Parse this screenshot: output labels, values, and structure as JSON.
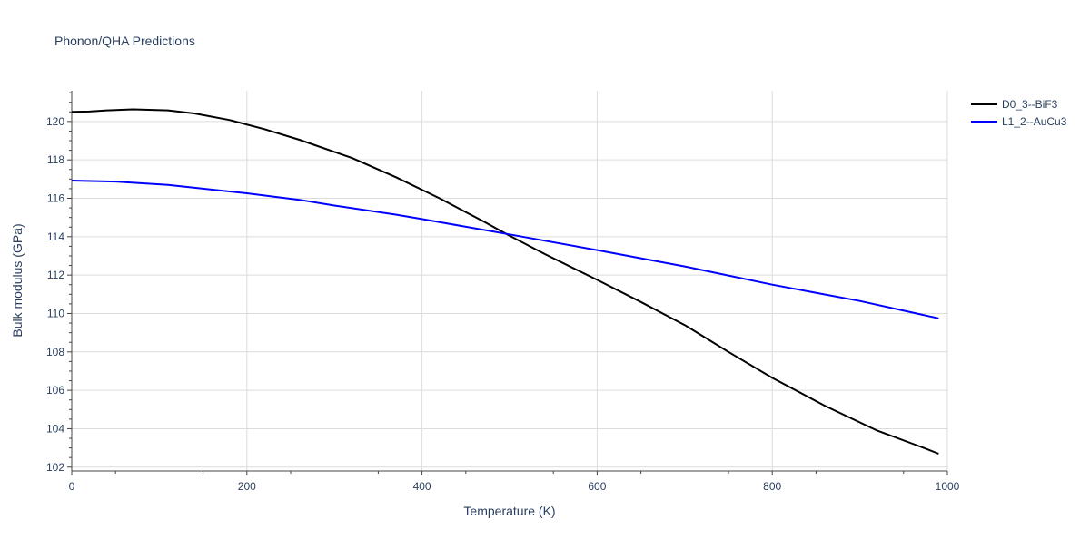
{
  "chart_data": {
    "type": "line",
    "title": "Phonon/QHA Predictions",
    "xlabel": "Temperature (K)",
    "ylabel": "Bulk modulus (GPa)",
    "xlim": [
      0,
      1000
    ],
    "ylim": [
      101.8,
      121.6
    ],
    "x_ticks": [
      0,
      200,
      400,
      600,
      800,
      1000
    ],
    "y_ticks": [
      102,
      104,
      106,
      108,
      110,
      112,
      114,
      116,
      118,
      120
    ],
    "grid": true,
    "legend_position": "top-right",
    "series": [
      {
        "name": "D0_3--BiF3",
        "color": "#000000",
        "x": [
          0,
          20,
          40,
          70,
          110,
          140,
          180,
          220,
          260,
          320,
          370,
          420,
          470,
          500,
          540,
          600,
          650,
          700,
          750,
          800,
          860,
          920,
          970,
          990
        ],
        "y": [
          120.5,
          120.52,
          120.58,
          120.63,
          120.58,
          120.42,
          120.08,
          119.6,
          119.05,
          118.1,
          117.1,
          116.0,
          114.8,
          114.05,
          113.1,
          111.75,
          110.6,
          109.4,
          108.0,
          106.65,
          105.2,
          103.9,
          103.05,
          102.7
        ]
      },
      {
        "name": "L1_2--AuCu3",
        "color": "#0000ff",
        "x": [
          0,
          50,
          110,
          200,
          260,
          300,
          370,
          400,
          500,
          600,
          700,
          800,
          900,
          990
        ],
        "y": [
          116.92,
          116.87,
          116.7,
          116.26,
          115.92,
          115.62,
          115.15,
          114.92,
          114.12,
          113.3,
          112.45,
          111.5,
          110.65,
          109.75
        ]
      }
    ]
  }
}
